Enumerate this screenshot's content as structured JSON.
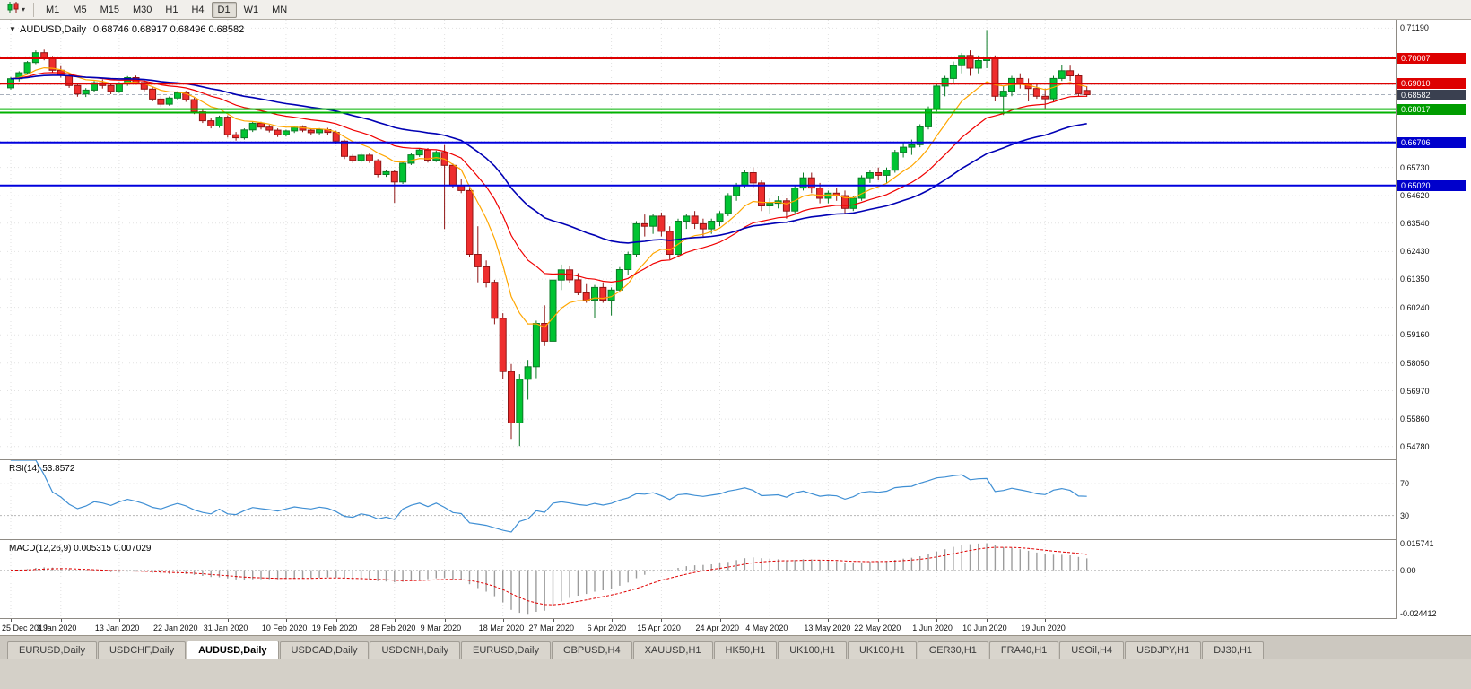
{
  "toolbar": {
    "timeframes": [
      "M1",
      "M5",
      "M15",
      "M30",
      "H1",
      "H4",
      "D1",
      "W1",
      "MN"
    ],
    "active_timeframe": "D1"
  },
  "chart": {
    "collapse_icon": "▼",
    "title_symbol": "AUDUSD,Daily",
    "title_ohlc": "0.68746 0.68917 0.68496 0.68582",
    "price_axis_labels": [
      "0.71190",
      "0.65730",
      "0.64620",
      "0.63540",
      "0.62430",
      "0.61350",
      "0.60240",
      "0.59160",
      "0.58050",
      "0.56970",
      "0.55860",
      "0.54780"
    ],
    "line_price_labels": [
      {
        "text": "0.70007",
        "value": 0.70007,
        "bg": "#dd0000"
      },
      {
        "text": "0.69010",
        "value": 0.6901,
        "bg": "#dd0000"
      },
      {
        "text": "0.68582",
        "value": 0.68582,
        "bg": "#3a4050"
      },
      {
        "text": "0.68017",
        "value": 0.68017,
        "bg": "#009c00"
      },
      {
        "text": "0.66706",
        "value": 0.66706,
        "bg": "#0000cc"
      },
      {
        "text": "0.65020",
        "value": 0.6502,
        "bg": "#0000cc"
      }
    ]
  },
  "chart_data": {
    "type": "candlestick",
    "symbol": "AUDUSD",
    "timeframe": "Daily",
    "title": "AUDUSD,Daily",
    "price_range": [
      0.5428,
      0.7152
    ],
    "bid": 0.68582,
    "grid_prices": [
      0.7119,
      0.7008,
      0.6897,
      0.6786,
      0.6675,
      0.6573,
      0.6462,
      0.6354,
      0.6243,
      0.6135,
      0.6024,
      0.5916,
      0.5805,
      0.5697,
      0.5586,
      0.5478
    ],
    "x_labels": [
      "25 Dec 2019",
      "3 Jan 2020",
      "13 Jan 2020",
      "22 Jan 2020",
      "31 Jan 2020",
      "10 Feb 2020",
      "19 Feb 2020",
      "28 Feb 2020",
      "9 Mar 2020",
      "18 Mar 2020",
      "27 Mar 2020",
      "6 Apr 2020",
      "15 Apr 2020",
      "24 Apr 2020",
      "4 May 2020",
      "13 May 2020",
      "22 May 2020",
      "1 Jun 2020",
      "10 Jun 2020",
      "19 Jun 2020"
    ],
    "x_label_indices": [
      0,
      6,
      13,
      20,
      26,
      33,
      39,
      46,
      52,
      59,
      65,
      72,
      78,
      85,
      91,
      98,
      104,
      111,
      117,
      124
    ],
    "colors": {
      "up_fill": "#00c432",
      "up_border": "#0b7a26",
      "down_fill": "#ee2e2e",
      "down_border": "#8f1414",
      "grid": "#e2e2e2"
    },
    "moving_averages": [
      {
        "name": "fast-ma",
        "period": 9,
        "color": "#ffa600",
        "width": 1.2
      },
      {
        "name": "mid-ma",
        "period": 20,
        "color": "#f00000",
        "width": 1.2
      },
      {
        "name": "slow-ma",
        "period": 40,
        "color": "#0000b4",
        "width": 1.6
      }
    ],
    "hlines": [
      {
        "price": 0.70007,
        "color": "#dd0000",
        "width": 2
      },
      {
        "price": 0.6901,
        "color": "#dd0000",
        "width": 2
      },
      {
        "price": 0.68017,
        "color": "#00b200",
        "width": 2
      },
      {
        "price": 0.6788,
        "color": "#00b200",
        "width": 2
      },
      {
        "price": 0.66706,
        "color": "#0000dd",
        "width": 2
      },
      {
        "price": 0.6502,
        "color": "#0000dd",
        "width": 2
      }
    ],
    "candles": [
      [
        0.6885,
        0.6928,
        0.6878,
        0.6921
      ],
      [
        0.6921,
        0.695,
        0.691,
        0.6944
      ],
      [
        0.6944,
        0.699,
        0.6938,
        0.6984
      ],
      [
        0.6984,
        0.7032,
        0.6978,
        0.7023
      ],
      [
        0.7023,
        0.7035,
        0.6993,
        0.7
      ],
      [
        0.7,
        0.701,
        0.6945,
        0.6954
      ],
      [
        0.6954,
        0.697,
        0.6925,
        0.6934
      ],
      [
        0.6934,
        0.6944,
        0.6885,
        0.6894
      ],
      [
        0.6894,
        0.6905,
        0.685,
        0.6861
      ],
      [
        0.6861,
        0.6884,
        0.6849,
        0.6876
      ],
      [
        0.6876,
        0.6912,
        0.687,
        0.6905
      ],
      [
        0.6905,
        0.6918,
        0.6882,
        0.6894
      ],
      [
        0.6894,
        0.6903,
        0.686,
        0.6871
      ],
      [
        0.6871,
        0.6908,
        0.6865,
        0.6901
      ],
      [
        0.6901,
        0.6931,
        0.6893,
        0.6925
      ],
      [
        0.6925,
        0.6933,
        0.6898,
        0.6906
      ],
      [
        0.6906,
        0.6915,
        0.6871,
        0.688
      ],
      [
        0.688,
        0.6888,
        0.6832,
        0.6841
      ],
      [
        0.6841,
        0.6852,
        0.681,
        0.6821
      ],
      [
        0.6821,
        0.6851,
        0.6815,
        0.6845
      ],
      [
        0.6845,
        0.6872,
        0.6838,
        0.6866
      ],
      [
        0.6866,
        0.6873,
        0.683,
        0.6839
      ],
      [
        0.6839,
        0.6846,
        0.6782,
        0.6791
      ],
      [
        0.6791,
        0.68,
        0.6747,
        0.6756
      ],
      [
        0.6756,
        0.6768,
        0.6726,
        0.6735
      ],
      [
        0.6735,
        0.6776,
        0.6728,
        0.677
      ],
      [
        0.677,
        0.6777,
        0.669,
        0.6701
      ],
      [
        0.6701,
        0.6712,
        0.6678,
        0.6689
      ],
      [
        0.6689,
        0.6726,
        0.6682,
        0.672
      ],
      [
        0.672,
        0.6751,
        0.6712,
        0.6746
      ],
      [
        0.6746,
        0.6752,
        0.6722,
        0.6731
      ],
      [
        0.6731,
        0.674,
        0.671,
        0.6719
      ],
      [
        0.6719,
        0.6726,
        0.6692,
        0.6701
      ],
      [
        0.6701,
        0.6721,
        0.6694,
        0.6716
      ],
      [
        0.6716,
        0.6737,
        0.6708,
        0.6731
      ],
      [
        0.6731,
        0.6738,
        0.6711,
        0.6719
      ],
      [
        0.6719,
        0.6726,
        0.67,
        0.6709
      ],
      [
        0.6709,
        0.6727,
        0.6702,
        0.6721
      ],
      [
        0.6721,
        0.6728,
        0.6701,
        0.671
      ],
      [
        0.671,
        0.6717,
        0.6666,
        0.6676
      ],
      [
        0.6676,
        0.6682,
        0.6606,
        0.6616
      ],
      [
        0.6616,
        0.6625,
        0.659,
        0.66
      ],
      [
        0.66,
        0.6628,
        0.6592,
        0.6621
      ],
      [
        0.6621,
        0.6629,
        0.659,
        0.6599
      ],
      [
        0.6599,
        0.6606,
        0.6534,
        0.6545
      ],
      [
        0.6545,
        0.6564,
        0.6536,
        0.6556
      ],
      [
        0.6556,
        0.6562,
        0.6434,
        0.6516
      ],
      [
        0.6516,
        0.6596,
        0.6508,
        0.6589
      ],
      [
        0.6589,
        0.663,
        0.6582,
        0.6622
      ],
      [
        0.6622,
        0.6648,
        0.6614,
        0.6641
      ],
      [
        0.6641,
        0.6649,
        0.6592,
        0.6601
      ],
      [
        0.6601,
        0.6639,
        0.6594,
        0.6632
      ],
      [
        0.6632,
        0.6661,
        0.6331,
        0.6581
      ],
      [
        0.6581,
        0.6588,
        0.6491,
        0.6501
      ],
      [
        0.6501,
        0.6527,
        0.6472,
        0.6482
      ],
      [
        0.6482,
        0.649,
        0.6222,
        0.6232
      ],
      [
        0.6232,
        0.6342,
        0.6122,
        0.6183
      ],
      [
        0.6183,
        0.6208,
        0.6102,
        0.6122
      ],
      [
        0.6122,
        0.6132,
        0.5958,
        0.5981
      ],
      [
        0.5981,
        0.6001,
        0.5742,
        0.5772
      ],
      [
        0.5772,
        0.5802,
        0.5508,
        0.5571
      ],
      [
        0.5571,
        0.5762,
        0.548,
        0.5742
      ],
      [
        0.5742,
        0.5818,
        0.5662,
        0.5791
      ],
      [
        0.5791,
        0.5972,
        0.5746,
        0.5961
      ],
      [
        0.5961,
        0.6032,
        0.5872,
        0.5891
      ],
      [
        0.5891,
        0.6142,
        0.5871,
        0.6131
      ],
      [
        0.6131,
        0.6192,
        0.6092,
        0.6171
      ],
      [
        0.6171,
        0.6186,
        0.6121,
        0.6132
      ],
      [
        0.6132,
        0.6158,
        0.6072,
        0.6081
      ],
      [
        0.6081,
        0.6115,
        0.6042,
        0.6052
      ],
      [
        0.6052,
        0.6112,
        0.5982,
        0.6102
      ],
      [
        0.6102,
        0.6122,
        0.6042,
        0.6052
      ],
      [
        0.6052,
        0.6102,
        0.5992,
        0.6092
      ],
      [
        0.6092,
        0.6182,
        0.6082,
        0.6172
      ],
      [
        0.6172,
        0.6242,
        0.6152,
        0.6232
      ],
      [
        0.6232,
        0.6362,
        0.6222,
        0.6352
      ],
      [
        0.6352,
        0.6388,
        0.6302,
        0.6342
      ],
      [
        0.6342,
        0.6392,
        0.6312,
        0.6382
      ],
      [
        0.6382,
        0.6396,
        0.6302,
        0.6322
      ],
      [
        0.6322,
        0.6342,
        0.6212,
        0.6232
      ],
      [
        0.6232,
        0.6372,
        0.6222,
        0.6362
      ],
      [
        0.6362,
        0.6392,
        0.6332,
        0.6382
      ],
      [
        0.6382,
        0.6402,
        0.6332,
        0.6352
      ],
      [
        0.6352,
        0.6372,
        0.6302,
        0.6332
      ],
      [
        0.6332,
        0.6372,
        0.6312,
        0.6362
      ],
      [
        0.6362,
        0.6402,
        0.6342,
        0.6392
      ],
      [
        0.6392,
        0.6472,
        0.6382,
        0.6462
      ],
      [
        0.6462,
        0.6512,
        0.6442,
        0.6502
      ],
      [
        0.6502,
        0.6562,
        0.6492,
        0.6552
      ],
      [
        0.6552,
        0.6572,
        0.6492,
        0.6512
      ],
      [
        0.6512,
        0.6522,
        0.6402,
        0.6422
      ],
      [
        0.6422,
        0.6452,
        0.6392,
        0.6432
      ],
      [
        0.6432,
        0.6462,
        0.6412,
        0.6442
      ],
      [
        0.6442,
        0.6452,
        0.6372,
        0.6402
      ],
      [
        0.6402,
        0.6502,
        0.6392,
        0.6492
      ],
      [
        0.6492,
        0.6552,
        0.6482,
        0.6532
      ],
      [
        0.6532,
        0.6552,
        0.6472,
        0.6492
      ],
      [
        0.6492,
        0.6512,
        0.6432,
        0.6452
      ],
      [
        0.6452,
        0.6482,
        0.6432,
        0.6472
      ],
      [
        0.6472,
        0.6492,
        0.6442,
        0.6462
      ],
      [
        0.6462,
        0.6482,
        0.6392,
        0.6412
      ],
      [
        0.6412,
        0.6462,
        0.6402,
        0.6452
      ],
      [
        0.6452,
        0.6542,
        0.6442,
        0.6532
      ],
      [
        0.6532,
        0.6562,
        0.6512,
        0.6552
      ],
      [
        0.6552,
        0.6572,
        0.6522,
        0.6542
      ],
      [
        0.6542,
        0.6572,
        0.6512,
        0.6562
      ],
      [
        0.6562,
        0.6642,
        0.6552,
        0.6632
      ],
      [
        0.6632,
        0.6672,
        0.6612,
        0.6652
      ],
      [
        0.6652,
        0.6682,
        0.6622,
        0.6662
      ],
      [
        0.6662,
        0.6742,
        0.6652,
        0.6732
      ],
      [
        0.6732,
        0.6812,
        0.6722,
        0.6802
      ],
      [
        0.6802,
        0.6902,
        0.6792,
        0.6892
      ],
      [
        0.6892,
        0.6932,
        0.6852,
        0.6922
      ],
      [
        0.6922,
        0.6988,
        0.6902,
        0.6972
      ],
      [
        0.6972,
        0.7022,
        0.6942,
        0.7012
      ],
      [
        0.7012,
        0.7032,
        0.6932,
        0.6962
      ],
      [
        0.6962,
        0.7012,
        0.6942,
        0.6992
      ],
      [
        0.6992,
        0.7112,
        0.6962,
        0.7002
      ],
      [
        0.7002,
        0.7012,
        0.6832,
        0.6852
      ],
      [
        0.6852,
        0.6892,
        0.6778,
        0.6872
      ],
      [
        0.6872,
        0.6932,
        0.6852,
        0.6922
      ],
      [
        0.6922,
        0.6942,
        0.6882,
        0.6902
      ],
      [
        0.6902,
        0.6922,
        0.6832,
        0.6882
      ],
      [
        0.6882,
        0.6902,
        0.6842,
        0.6852
      ],
      [
        0.6852,
        0.6882,
        0.6802,
        0.6842
      ],
      [
        0.6842,
        0.6932,
        0.6832,
        0.6922
      ],
      [
        0.6922,
        0.6976,
        0.6912,
        0.6952
      ],
      [
        0.6952,
        0.6972,
        0.6912,
        0.6932
      ],
      [
        0.6932,
        0.6942,
        0.6852,
        0.6862
      ],
      [
        0.68746,
        0.68917,
        0.68496,
        0.68582
      ]
    ]
  },
  "rsi_panel": {
    "label": "RSI(14) 53.8572",
    "period": 14,
    "levels": [
      70,
      30
    ],
    "level_labels": [
      "70",
      "30"
    ],
    "line_color": "#3f8fd4",
    "range": [
      0,
      100
    ]
  },
  "macd_panel": {
    "label": "MACD(12,26,9) 0.005315 0.007029",
    "fast": 12,
    "slow": 26,
    "signal": 9,
    "range": [
      -0.027,
      0.017
    ],
    "hist_color": "#9c9c9c",
    "signal_color": "#e00000",
    "scale_labels": [
      {
        "text": "0.015741",
        "value": 0.015741
      },
      {
        "text": "0.00",
        "value": 0
      },
      {
        "text": "-0.024412",
        "value": -0.024412
      }
    ]
  },
  "tabs": {
    "items": [
      "EURUSD,Daily",
      "USDCHF,Daily",
      "AUDUSD,Daily",
      "USDCAD,Daily",
      "USDCNH,Daily",
      "EURUSD,Daily",
      "GBPUSD,H4",
      "XAUUSD,H1",
      "HK50,H1",
      "UK100,H1",
      "UK100,H1",
      "GER30,H1",
      "FRA40,H1",
      "USOil,H4",
      "USDJPY,H1",
      "DJ30,H1"
    ],
    "active_index": 2
  }
}
